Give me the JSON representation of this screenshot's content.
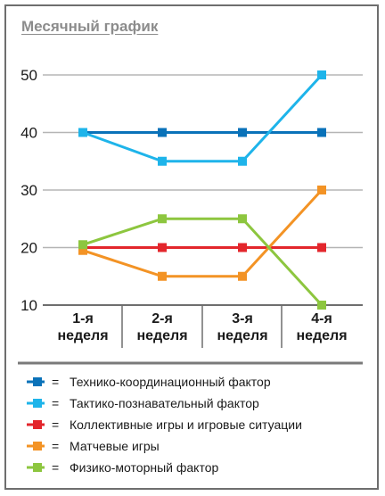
{
  "chart_data": {
    "type": "line",
    "title": "Месячный график",
    "categories": [
      [
        "1-я",
        "неделя"
      ],
      [
        "2-я",
        "неделя"
      ],
      [
        "3-я",
        "неделя"
      ],
      [
        "4-я",
        "неделя"
      ]
    ],
    "yticks": [
      10,
      20,
      30,
      40,
      50
    ],
    "ylim": [
      10,
      50
    ],
    "grid": true,
    "legend_position": "bottom",
    "series": [
      {
        "name": "Технико-координационный фактор",
        "color": "#0a72b9",
        "values": [
          40,
          40,
          40,
          40
        ]
      },
      {
        "name": "Тактико-познавательный фактор",
        "color": "#1eb4ea",
        "values": [
          40,
          35,
          35,
          50
        ]
      },
      {
        "name": "Коллективные игры и игровые ситуации",
        "color": "#e3262c",
        "values": [
          20,
          20,
          20,
          20
        ]
      },
      {
        "name": "Матчевые игры",
        "color": "#f39325",
        "values": [
          19.5,
          15,
          15,
          30
        ]
      },
      {
        "name": "Физико-моторный фактор",
        "color": "#8dc63f",
        "values": [
          20.5,
          25,
          25,
          10
        ]
      }
    ],
    "legend_separator": "="
  }
}
